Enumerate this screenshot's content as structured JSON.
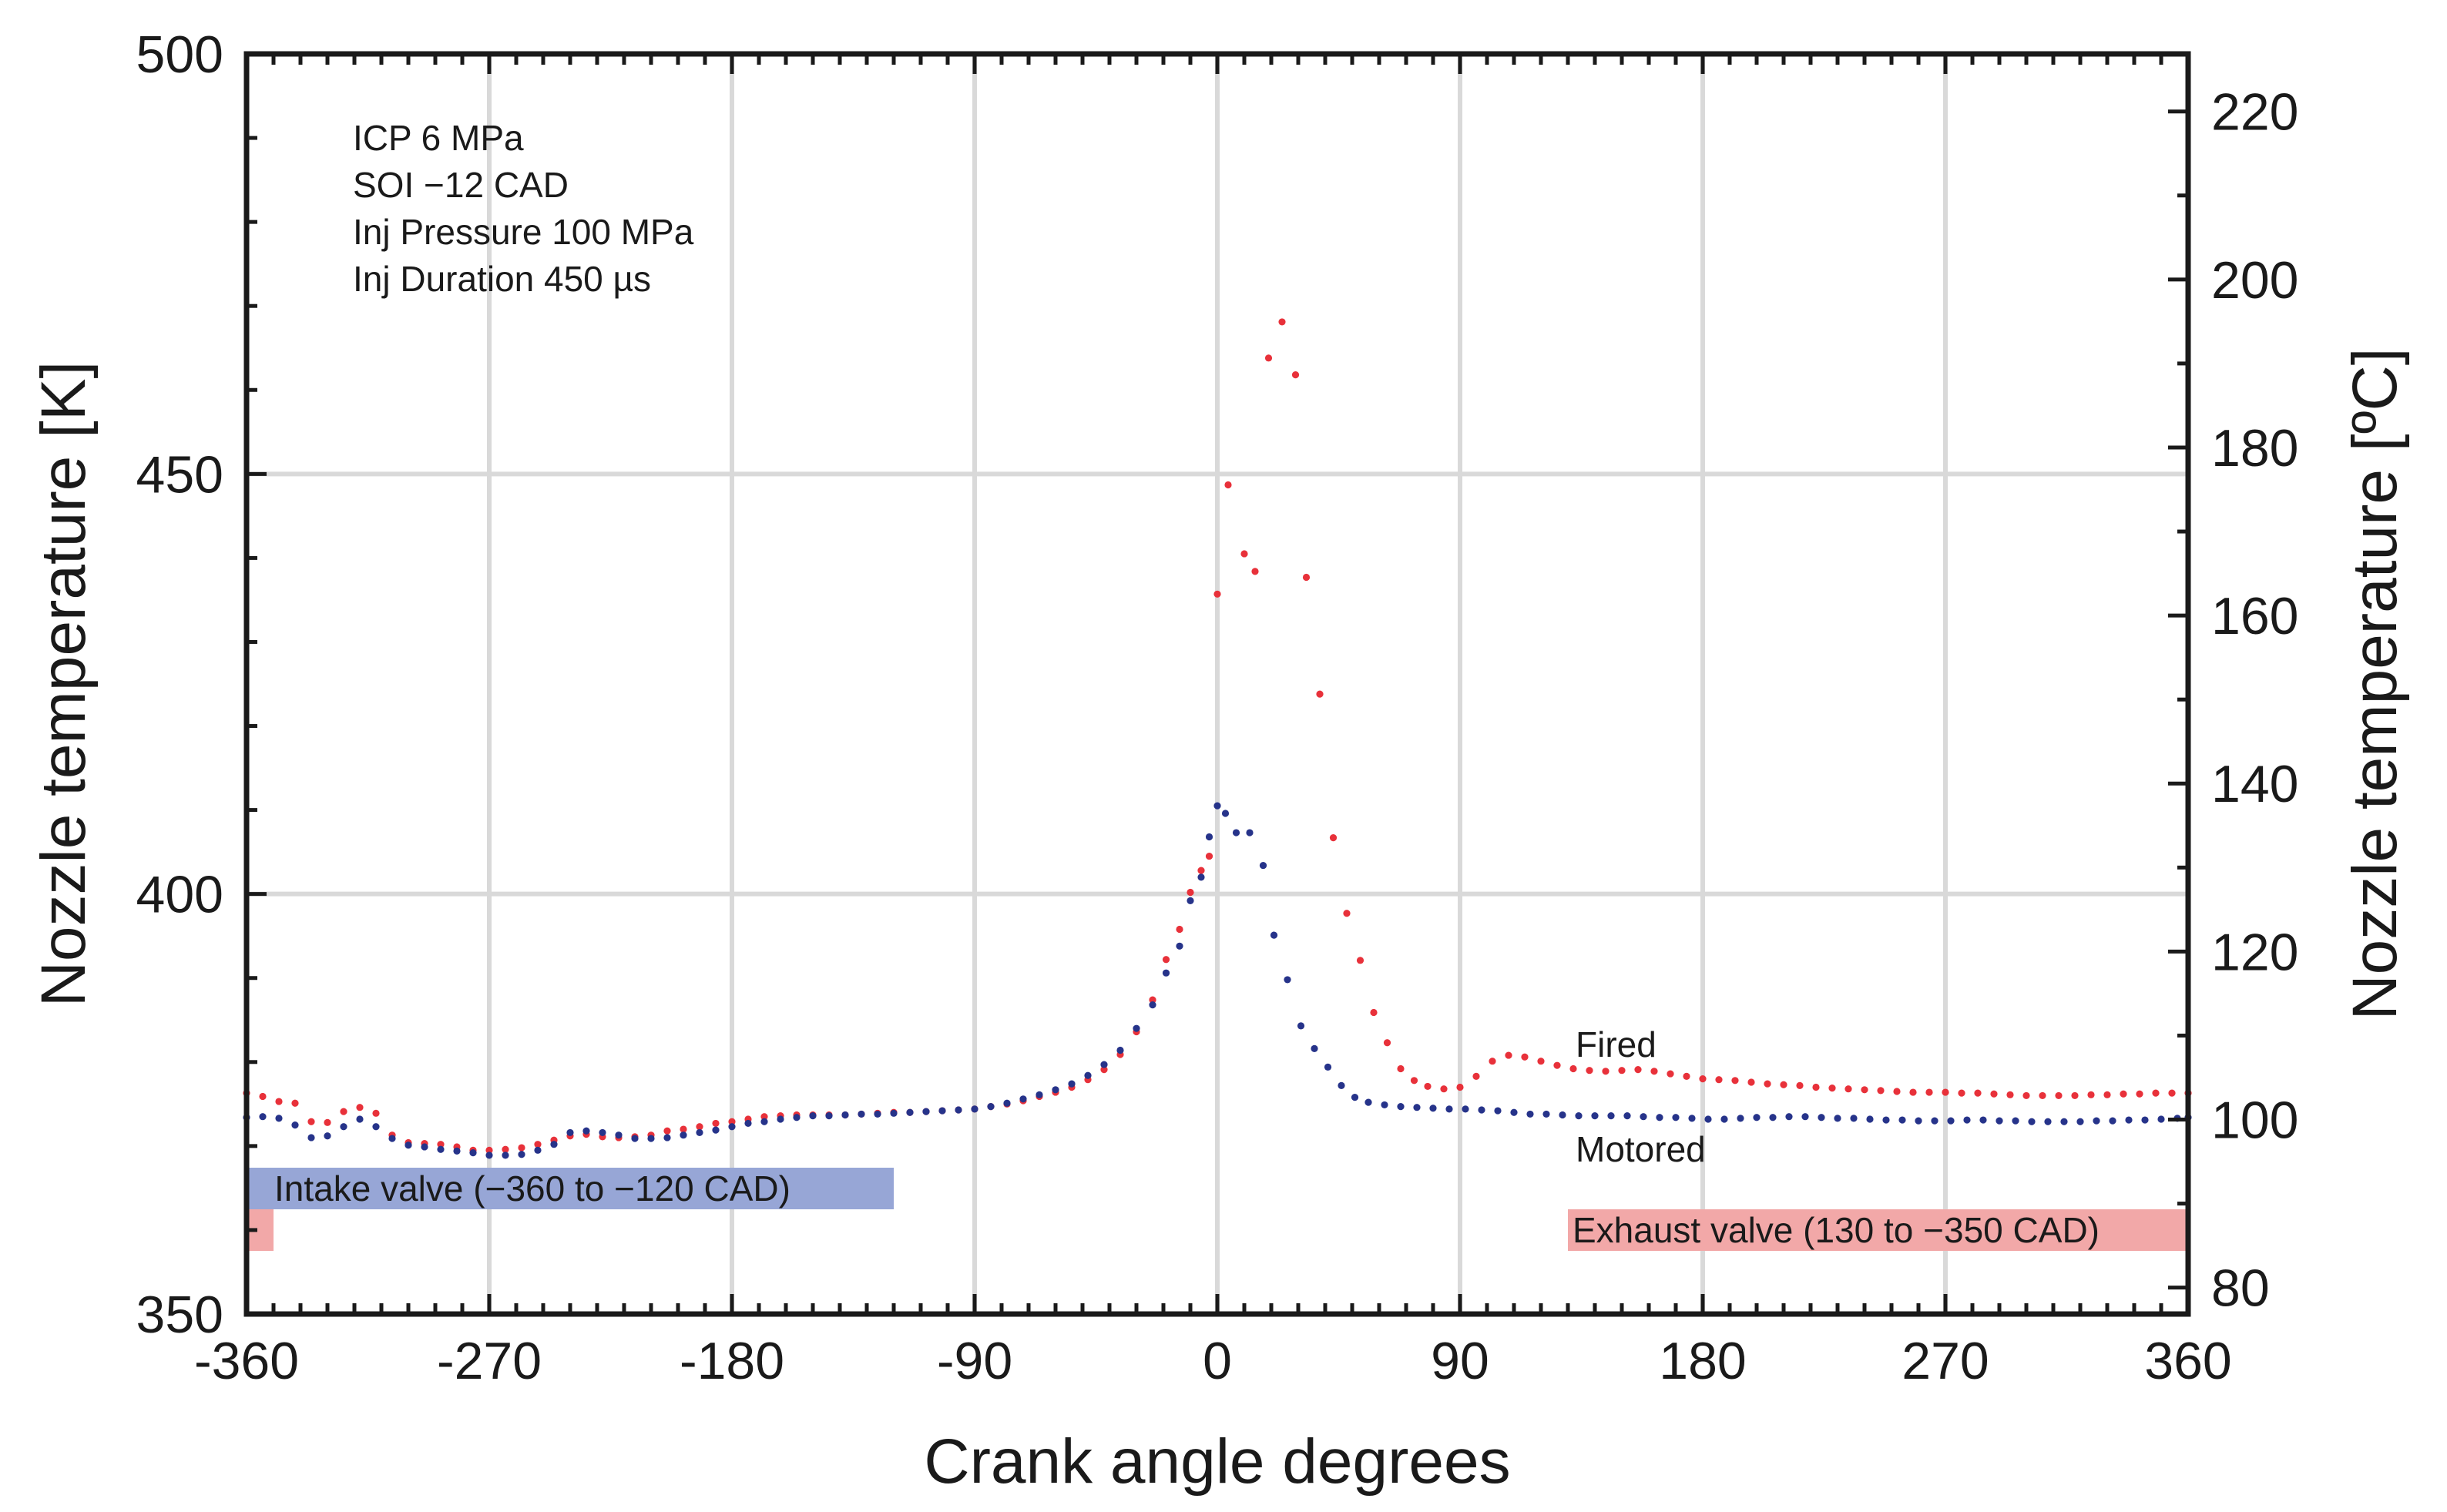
{
  "chart_data": {
    "type": "scatter",
    "title": "",
    "xlabel": "Crank angle degrees",
    "ylabel": "Nozzle temperature [K]",
    "ylabel_right": "Nozzle temperature [ºC]",
    "xlim": [
      -360,
      360
    ],
    "ylim": [
      350,
      500
    ],
    "ylim_right_celsius": [
      76.85,
      226.85
    ],
    "xticks": [
      "-360",
      "-270",
      "-180",
      "-90",
      "0",
      "90",
      "180",
      "270",
      "360"
    ],
    "yticks": [
      "350",
      "400",
      "450",
      "500"
    ],
    "yticks_right": [
      "80",
      "100",
      "120",
      "140",
      "160",
      "180",
      "200",
      "220"
    ],
    "grid": true,
    "annotations": [
      "ICP  6 MPa",
      "SOI  −12 CAD",
      "Inj Pressure   100 MPa",
      "Inj Duration    450 µs"
    ],
    "bands": [
      {
        "label": "Intake valve (−360 to −120 CAD)",
        "start": -360,
        "end": -120,
        "color": "#97a6d6"
      },
      {
        "label": "Exhaust valve (130 to −350 CAD)",
        "start": 130,
        "end": 360,
        "wrap_end": -350,
        "color": "#f2a8a8"
      }
    ],
    "series": [
      {
        "name": "Fired",
        "color": "#e8313a",
        "points": [
          [
            -360,
            376.3
          ],
          [
            -354,
            375.9
          ],
          [
            -348,
            375.3
          ],
          [
            -342,
            375.1
          ],
          [
            -336,
            372.9
          ],
          [
            -330,
            372.8
          ],
          [
            -324,
            374.1
          ],
          [
            -318,
            374.6
          ],
          [
            -312,
            373.9
          ],
          [
            -306,
            371.3
          ],
          [
            -300,
            370.4
          ],
          [
            -294,
            370.3
          ],
          [
            -288,
            370.2
          ],
          [
            -282,
            369.9
          ],
          [
            -276,
            369.5
          ],
          [
            -270,
            369.5
          ],
          [
            -264,
            369.6
          ],
          [
            -258,
            369.8
          ],
          [
            -252,
            370.2
          ],
          [
            -246,
            370.7
          ],
          [
            -240,
            371.2
          ],
          [
            -234,
            371.4
          ],
          [
            -228,
            371.1
          ],
          [
            -222,
            371.0
          ],
          [
            -216,
            371.1
          ],
          [
            -210,
            371.3
          ],
          [
            -204,
            371.8
          ],
          [
            -198,
            372.0
          ],
          [
            -192,
            372.3
          ],
          [
            -186,
            372.7
          ],
          [
            -180,
            372.9
          ],
          [
            -174,
            373.2
          ],
          [
            -168,
            373.5
          ],
          [
            -162,
            373.6
          ],
          [
            -156,
            373.7
          ],
          [
            -150,
            373.7
          ],
          [
            -144,
            373.7
          ],
          [
            -138,
            373.7
          ],
          [
            -132,
            373.8
          ],
          [
            -126,
            373.9
          ],
          [
            -120,
            374.0
          ],
          [
            -114,
            374.0
          ],
          [
            -108,
            374.1
          ],
          [
            -102,
            374.2
          ],
          [
            -96,
            374.3
          ],
          [
            -90,
            374.4
          ],
          [
            -84,
            374.7
          ],
          [
            -78,
            375.0
          ],
          [
            -72,
            375.4
          ],
          [
            -66,
            375.9
          ],
          [
            -60,
            376.4
          ],
          [
            -54,
            377.0
          ],
          [
            -48,
            377.9
          ],
          [
            -42,
            379.1
          ],
          [
            -36,
            380.9
          ],
          [
            -30,
            383.6
          ],
          [
            -24,
            387.4
          ],
          [
            -19,
            392.2
          ],
          [
            -14,
            395.8
          ],
          [
            -10,
            400.2
          ],
          [
            -6,
            402.8
          ],
          [
            -3,
            404.5
          ],
          [
            0,
            435.7
          ],
          [
            4,
            448.7
          ],
          [
            10,
            440.5
          ],
          [
            14,
            438.4
          ],
          [
            19,
            463.8
          ],
          [
            24,
            468.1
          ],
          [
            29,
            461.8
          ],
          [
            33,
            437.7
          ],
          [
            38,
            423.8
          ],
          [
            43,
            406.7
          ],
          [
            48,
            397.7
          ],
          [
            53,
            392.1
          ],
          [
            58,
            385.9
          ],
          [
            63,
            382.3
          ],
          [
            68,
            379.2
          ],
          [
            73,
            377.8
          ],
          [
            78,
            377.1
          ],
          [
            84,
            376.8
          ],
          [
            90,
            377.0
          ],
          [
            96,
            378.3
          ],
          [
            102,
            380.1
          ],
          [
            108,
            380.8
          ],
          [
            114,
            380.6
          ],
          [
            120,
            380.1
          ],
          [
            126,
            379.6
          ],
          [
            132,
            379.2
          ],
          [
            138,
            379.0
          ],
          [
            144,
            378.9
          ],
          [
            150,
            379.0
          ],
          [
            156,
            379.1
          ],
          [
            162,
            378.9
          ],
          [
            168,
            378.6
          ],
          [
            174,
            378.3
          ],
          [
            180,
            378.0
          ],
          [
            186,
            377.9
          ],
          [
            192,
            377.8
          ],
          [
            198,
            377.6
          ],
          [
            204,
            377.4
          ],
          [
            210,
            377.3
          ],
          [
            216,
            377.2
          ],
          [
            222,
            377.0
          ],
          [
            228,
            376.9
          ],
          [
            234,
            376.8
          ],
          [
            240,
            376.7
          ],
          [
            246,
            376.6
          ],
          [
            252,
            376.5
          ],
          [
            258,
            376.4
          ],
          [
            264,
            376.4
          ],
          [
            270,
            376.4
          ],
          [
            276,
            376.3
          ],
          [
            282,
            376.3
          ],
          [
            288,
            376.2
          ],
          [
            294,
            376.1
          ],
          [
            300,
            376.0
          ],
          [
            306,
            376.0
          ],
          [
            312,
            376.0
          ],
          [
            318,
            376.0
          ],
          [
            324,
            376.1
          ],
          [
            330,
            376.1
          ],
          [
            336,
            376.2
          ],
          [
            342,
            376.2
          ],
          [
            348,
            376.3
          ],
          [
            354,
            376.3
          ],
          [
            360,
            376.3
          ]
        ]
      },
      {
        "name": "Motored",
        "color": "#26338a",
        "points": [
          [
            -360,
            373.4
          ],
          [
            -354,
            373.5
          ],
          [
            -348,
            373.3
          ],
          [
            -342,
            372.5
          ],
          [
            -336,
            371.0
          ],
          [
            -330,
            371.2
          ],
          [
            -324,
            372.3
          ],
          [
            -318,
            373.2
          ],
          [
            -312,
            372.3
          ],
          [
            -306,
            370.9
          ],
          [
            -300,
            370.1
          ],
          [
            -294,
            369.9
          ],
          [
            -288,
            369.6
          ],
          [
            -282,
            369.4
          ],
          [
            -276,
            369.2
          ],
          [
            -270,
            368.9
          ],
          [
            -264,
            368.9
          ],
          [
            -258,
            369.0
          ],
          [
            -252,
            369.5
          ],
          [
            -246,
            370.2
          ],
          [
            -240,
            371.6
          ],
          [
            -234,
            371.8
          ],
          [
            -228,
            371.6
          ],
          [
            -222,
            371.3
          ],
          [
            -216,
            370.9
          ],
          [
            -210,
            370.9
          ],
          [
            -204,
            371.0
          ],
          [
            -198,
            371.3
          ],
          [
            -192,
            371.6
          ],
          [
            -186,
            371.9
          ],
          [
            -180,
            372.3
          ],
          [
            -174,
            372.7
          ],
          [
            -168,
            372.9
          ],
          [
            -162,
            373.2
          ],
          [
            -156,
            373.4
          ],
          [
            -150,
            373.6
          ],
          [
            -144,
            373.6
          ],
          [
            -138,
            373.7
          ],
          [
            -132,
            373.8
          ],
          [
            -126,
            373.8
          ],
          [
            -120,
            373.9
          ],
          [
            -114,
            374.0
          ],
          [
            -108,
            374.1
          ],
          [
            -102,
            374.2
          ],
          [
            -96,
            374.3
          ],
          [
            -90,
            374.4
          ],
          [
            -84,
            374.7
          ],
          [
            -78,
            375.1
          ],
          [
            -72,
            375.6
          ],
          [
            -66,
            376.1
          ],
          [
            -60,
            376.7
          ],
          [
            -54,
            377.4
          ],
          [
            -48,
            378.4
          ],
          [
            -42,
            379.7
          ],
          [
            -36,
            381.4
          ],
          [
            -30,
            384.0
          ],
          [
            -24,
            386.8
          ],
          [
            -19,
            390.6
          ],
          [
            -14,
            393.8
          ],
          [
            -10,
            399.2
          ],
          [
            -6,
            402.0
          ],
          [
            -3,
            406.8
          ],
          [
            0,
            410.5
          ],
          [
            3,
            409.6
          ],
          [
            7,
            407.3
          ],
          [
            12,
            407.3
          ],
          [
            17,
            403.4
          ],
          [
            21,
            395.1
          ],
          [
            26,
            389.8
          ],
          [
            31,
            384.3
          ],
          [
            36,
            381.6
          ],
          [
            41,
            379.4
          ],
          [
            46,
            377.2
          ],
          [
            51,
            375.8
          ],
          [
            56,
            375.2
          ],
          [
            62,
            374.9
          ],
          [
            68,
            374.7
          ],
          [
            74,
            374.6
          ],
          [
            80,
            374.5
          ],
          [
            86,
            374.4
          ],
          [
            92,
            374.4
          ],
          [
            98,
            374.3
          ],
          [
            104,
            374.2
          ],
          [
            110,
            374.0
          ],
          [
            116,
            373.8
          ],
          [
            122,
            373.8
          ],
          [
            128,
            373.7
          ],
          [
            134,
            373.6
          ],
          [
            140,
            373.6
          ],
          [
            146,
            373.6
          ],
          [
            152,
            373.6
          ],
          [
            158,
            373.5
          ],
          [
            164,
            373.4
          ],
          [
            170,
            373.4
          ],
          [
            176,
            373.3
          ],
          [
            182,
            373.2
          ],
          [
            188,
            373.2
          ],
          [
            194,
            373.3
          ],
          [
            200,
            373.4
          ],
          [
            206,
            373.4
          ],
          [
            212,
            373.5
          ],
          [
            218,
            373.5
          ],
          [
            224,
            373.4
          ],
          [
            230,
            373.3
          ],
          [
            236,
            373.3
          ],
          [
            242,
            373.2
          ],
          [
            248,
            373.1
          ],
          [
            254,
            373.1
          ],
          [
            260,
            373.0
          ],
          [
            266,
            373.0
          ],
          [
            272,
            373.0
          ],
          [
            278,
            373.1
          ],
          [
            284,
            373.1
          ],
          [
            290,
            373.0
          ],
          [
            296,
            373.0
          ],
          [
            302,
            372.9
          ],
          [
            308,
            372.9
          ],
          [
            314,
            372.9
          ],
          [
            320,
            372.9
          ],
          [
            326,
            373.0
          ],
          [
            332,
            373.0
          ],
          [
            338,
            373.1
          ],
          [
            344,
            373.1
          ],
          [
            350,
            373.2
          ],
          [
            356,
            373.3
          ],
          [
            360,
            373.4
          ]
        ]
      }
    ],
    "series_labels": [
      "Fired",
      "Motored"
    ]
  }
}
